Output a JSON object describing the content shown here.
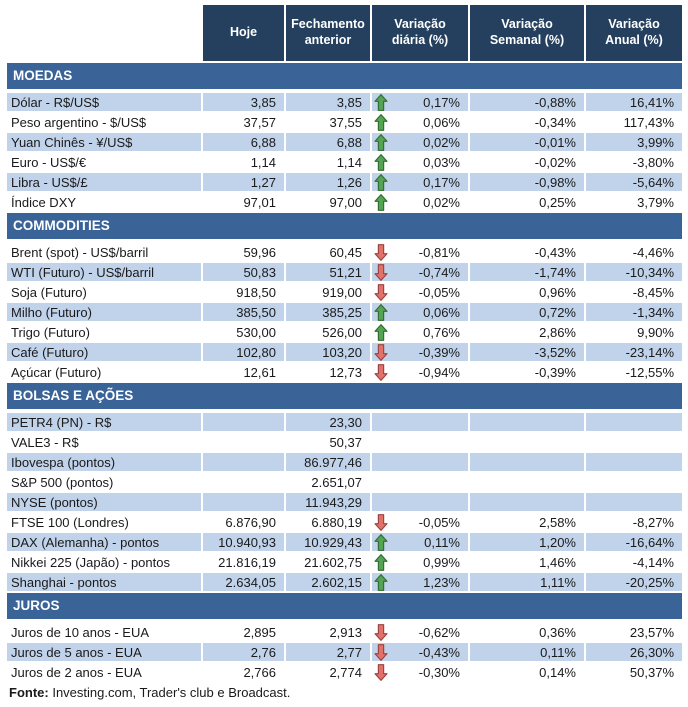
{
  "header": {
    "columns": [
      "Hoje",
      "Fechamento anterior",
      "Variação diária (%)",
      "Variação Semanal (%)",
      "Variação Anual (%)"
    ]
  },
  "sections": [
    {
      "title": "MOEDAS",
      "rows": [
        {
          "label": "Dólar - R$/US$",
          "hoje": "3,85",
          "fechamento": "3,85",
          "arrow": "up",
          "var_diaria": "0,17%",
          "var_semanal": "-0,88%",
          "var_anual": "16,41%",
          "shaded": true
        },
        {
          "label": "Peso argentino - $/US$",
          "hoje": "37,57",
          "fechamento": "37,55",
          "arrow": "up",
          "var_diaria": "0,06%",
          "var_semanal": "-0,34%",
          "var_anual": "117,43%",
          "shaded": false
        },
        {
          "label": "Yuan Chinês - ¥/US$",
          "hoje": "6,88",
          "fechamento": "6,88",
          "arrow": "up",
          "var_diaria": "0,02%",
          "var_semanal": "-0,01%",
          "var_anual": "3,99%",
          "shaded": true
        },
        {
          "label": "Euro - US$/€",
          "hoje": "1,14",
          "fechamento": "1,14",
          "arrow": "up",
          "var_diaria": "0,03%",
          "var_semanal": "-0,02%",
          "var_anual": "-3,80%",
          "shaded": false
        },
        {
          "label": "Libra - US$/£",
          "hoje": "1,27",
          "fechamento": "1,26",
          "arrow": "up",
          "var_diaria": "0,17%",
          "var_semanal": "-0,98%",
          "var_anual": "-5,64%",
          "shaded": true
        },
        {
          "label": "Índice DXY",
          "hoje": "97,01",
          "fechamento": "97,00",
          "arrow": "up",
          "var_diaria": "0,02%",
          "var_semanal": "0,25%",
          "var_anual": "3,79%",
          "shaded": false
        }
      ]
    },
    {
      "title": "COMMODITIES",
      "rows": [
        {
          "label": "Brent (spot) - US$/barril",
          "hoje": "59,96",
          "fechamento": "60,45",
          "arrow": "down",
          "var_diaria": "-0,81%",
          "var_semanal": "-0,43%",
          "var_anual": "-4,46%",
          "shaded": false
        },
        {
          "label": "WTI (Futuro) - US$/barril",
          "hoje": "50,83",
          "fechamento": "51,21",
          "arrow": "down",
          "var_diaria": "-0,74%",
          "var_semanal": "-1,74%",
          "var_anual": "-10,34%",
          "shaded": true
        },
        {
          "label": "Soja (Futuro)",
          "hoje": "918,50",
          "fechamento": "919,00",
          "arrow": "down",
          "var_diaria": "-0,05%",
          "var_semanal": "0,96%",
          "var_anual": "-8,45%",
          "shaded": false
        },
        {
          "label": "Milho (Futuro)",
          "hoje": "385,50",
          "fechamento": "385,25",
          "arrow": "up",
          "var_diaria": "0,06%",
          "var_semanal": "0,72%",
          "var_anual": "-1,34%",
          "shaded": true
        },
        {
          "label": "Trigo (Futuro)",
          "hoje": "530,00",
          "fechamento": "526,00",
          "arrow": "up",
          "var_diaria": "0,76%",
          "var_semanal": "2,86%",
          "var_anual": "9,90%",
          "shaded": false
        },
        {
          "label": "Café (Futuro)",
          "hoje": "102,80",
          "fechamento": "103,20",
          "arrow": "down",
          "var_diaria": "-0,39%",
          "var_semanal": "-3,52%",
          "var_anual": "-23,14%",
          "shaded": true
        },
        {
          "label": "Açúcar (Futuro)",
          "hoje": "12,61",
          "fechamento": "12,73",
          "arrow": "down",
          "var_diaria": "-0,94%",
          "var_semanal": "-0,39%",
          "var_anual": "-12,55%",
          "shaded": false
        }
      ]
    },
    {
      "title": "BOLSAS E AÇÕES",
      "rows": [
        {
          "label": "PETR4 (PN) - R$",
          "hoje": "",
          "fechamento": "23,30",
          "arrow": "",
          "var_diaria": "",
          "var_semanal": "",
          "var_anual": "",
          "shaded": true
        },
        {
          "label": "VALE3 - R$",
          "hoje": "",
          "fechamento": "50,37",
          "arrow": "",
          "var_diaria": "",
          "var_semanal": "",
          "var_anual": "",
          "shaded": false
        },
        {
          "label": "Ibovespa (pontos)",
          "hoje": "",
          "fechamento": "86.977,46",
          "arrow": "",
          "var_diaria": "",
          "var_semanal": "",
          "var_anual": "",
          "shaded": true
        },
        {
          "label": "S&P 500 (pontos)",
          "hoje": "",
          "fechamento": "2.651,07",
          "arrow": "",
          "var_diaria": "",
          "var_semanal": "",
          "var_anual": "",
          "shaded": false
        },
        {
          "label": "NYSE (pontos)",
          "hoje": "",
          "fechamento": "11.943,29",
          "arrow": "",
          "var_diaria": "",
          "var_semanal": "",
          "var_anual": "",
          "shaded": true
        },
        {
          "label": "FTSE 100 (Londres)",
          "hoje": "6.876,90",
          "fechamento": "6.880,19",
          "arrow": "down",
          "var_diaria": "-0,05%",
          "var_semanal": "2,58%",
          "var_anual": "-8,27%",
          "shaded": false
        },
        {
          "label": "DAX (Alemanha) - pontos",
          "hoje": "10.940,93",
          "fechamento": "10.929,43",
          "arrow": "up",
          "var_diaria": "0,11%",
          "var_semanal": "1,20%",
          "var_anual": "-16,64%",
          "shaded": true
        },
        {
          "label": "Nikkei 225 (Japão) - pontos",
          "hoje": "21.816,19",
          "fechamento": "21.602,75",
          "arrow": "up",
          "var_diaria": "0,99%",
          "var_semanal": "1,46%",
          "var_anual": "-4,14%",
          "shaded": false
        },
        {
          "label": "Shanghai - pontos",
          "hoje": "2.634,05",
          "fechamento": "2.602,15",
          "arrow": "up",
          "var_diaria": "1,23%",
          "var_semanal": "1,11%",
          "var_anual": "-20,25%",
          "shaded": true
        }
      ]
    },
    {
      "title": "JUROS",
      "rows": [
        {
          "label": "Juros de 10 anos - EUA",
          "hoje": "2,895",
          "fechamento": "2,913",
          "arrow": "down",
          "var_diaria": "-0,62%",
          "var_semanal": "0,36%",
          "var_anual": "23,57%",
          "shaded": false
        },
        {
          "label": "Juros de 5 anos - EUA",
          "hoje": "2,76",
          "fechamento": "2,77",
          "arrow": "down",
          "var_diaria": "-0,43%",
          "var_semanal": "0,11%",
          "var_anual": "26,30%",
          "shaded": true
        },
        {
          "label": "Juros de 2 anos - EUA",
          "hoje": "2,766",
          "fechamento": "2,774",
          "arrow": "down",
          "var_diaria": "-0,30%",
          "var_semanal": "0,14%",
          "var_anual": "50,37%",
          "shaded": false
        }
      ]
    }
  ],
  "footer": {
    "label": "Fonte:",
    "text": " Investing.com, Trader's club e Broadcast."
  },
  "icons": {
    "up": "up-arrow-icon",
    "down": "down-arrow-icon"
  },
  "colors": {
    "header_bg": "#24405E",
    "section_bg": "#3A6397",
    "row_shaded_bg": "#C0D3EB",
    "row_white_bg": "#FFFFFF",
    "text": "#1A1A1A",
    "header_text": "#FFFFFF",
    "arrow_up_fill": "#55A455",
    "arrow_up_stroke": "#2F6B2F",
    "arrow_down_fill": "#E2716A",
    "arrow_down_stroke": "#99423E"
  }
}
